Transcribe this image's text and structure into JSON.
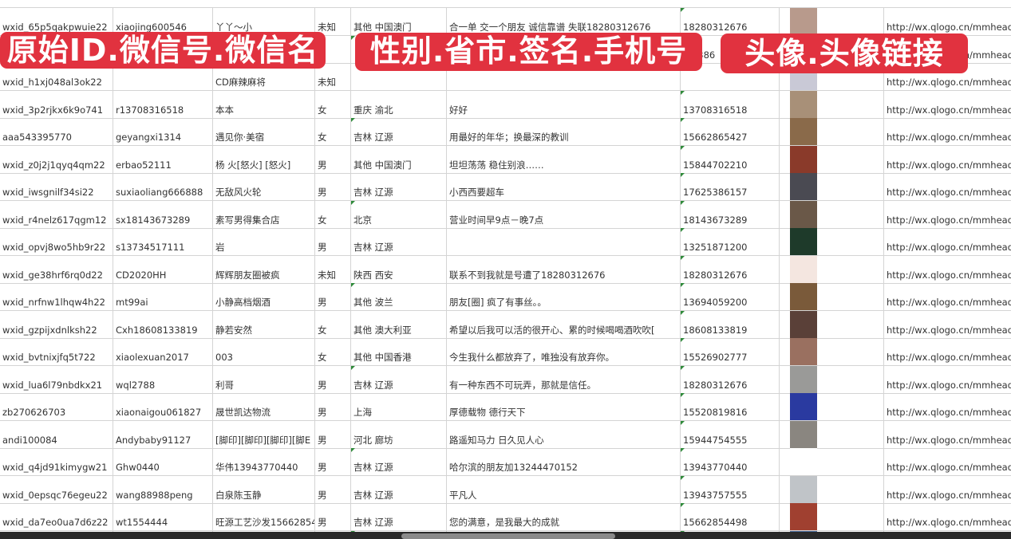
{
  "overlays": {
    "ids_label": "原始ID.微信号.微信名",
    "profile_label": "性别.省市.签名.手机号",
    "avatar_label": "头像.头像链接"
  },
  "colors": {
    "overlay": "#e1323f",
    "grid": "#d4d4d4",
    "cell_marker": "#2f8a3a"
  },
  "rows": [
    {
      "id": "wxid_65p5qakpwuie22",
      "wechat": "xiaojing600546",
      "name": "丫丫～小",
      "gender": "未知",
      "region": "其他 中国澳门",
      "signature": "合一单 交一个朋友 诚信靠谱 失联18280312676",
      "phone": "18280312676",
      "avatar_color": "#b89a8c",
      "url": "http://wx.qlogo.cn/mmhead"
    },
    {
      "id": "",
      "wechat": "",
      "name": "",
      "gender": "",
      "region": "",
      "signature": "",
      "phone": "...5386",
      "avatar_color": "#3c4f8a",
      "url": "http://wx.qlogo.cn/mmhead"
    },
    {
      "id": "wxid_h1xj048al3ok22",
      "wechat": "",
      "name": "CD麻辣麻将",
      "gender": "未知",
      "region": "",
      "signature": "",
      "phone": "",
      "avatar_color": "#c9c9d6",
      "url": "http://wx.qlogo.cn/mmhead"
    },
    {
      "id": "wxid_3p2rjkx6k9o741",
      "wechat": "r13708316518",
      "name": "本本",
      "gender": "女",
      "region": "重庆 渝北",
      "signature": "好好",
      "phone": "13708316518",
      "avatar_color": "#a89078",
      "url": "http://wx.qlogo.cn/mmhead"
    },
    {
      "id": "aaa543395770",
      "wechat": "geyangxi1314",
      "name": "遇见你·美宿",
      "gender": "女",
      "region": "吉林 辽源",
      "signature": "用最好的年华；换最深的教训",
      "phone": "15662865427",
      "avatar_color": "#8a6a4a",
      "url": "http://wx.qlogo.cn/mmhead"
    },
    {
      "id": "wxid_z0j2j1qyq4qm22",
      "wechat": "erbao52111",
      "name": "杨 火[怒火] [怒火]",
      "gender": "男",
      "region": "其他 中国澳门",
      "signature": "坦坦荡荡 稳住别浪……",
      "phone": "15844702210",
      "avatar_color": "#8a3a2a",
      "url": "http://wx.qlogo.cn/mmhead"
    },
    {
      "id": "wxid_iwsgnilf34si22",
      "wechat": "suxiaoliang666888",
      "name": "无敌风火轮",
      "gender": "男",
      "region": "吉林 辽源",
      "signature": "小西西要超车",
      "phone": "17625386157",
      "avatar_color": "#4a4a52",
      "url": "http://wx.qlogo.cn/mmhead"
    },
    {
      "id": "wxid_r4nelz617qgm12",
      "wechat": "sx18143673289",
      "name": "素写男得集合店",
      "gender": "女",
      "region": "北京",
      "signature": "营业时间早9点－晚7点",
      "phone": "18143673289",
      "avatar_color": "#6a5848",
      "url": "http://wx.qlogo.cn/mmhead"
    },
    {
      "id": "wxid_opvj8wo5hb9r22",
      "wechat": "s13734517111",
      "name": "岩",
      "gender": "男",
      "region": "吉林 辽源",
      "signature": "",
      "phone": "13251871200",
      "avatar_color": "#1e3a2a",
      "url": "http://wx.qlogo.cn/mmhead"
    },
    {
      "id": "wxid_ge38hrf6rq0d22",
      "wechat": "CD2020HH",
      "name": "辉辉朋友圈被疯",
      "gender": "未知",
      "region": "陕西 西安",
      "signature": "联系不到我就是号遭了18280312676",
      "phone": "18280312676",
      "avatar_color": "#f4e6e0",
      "url": "http://wx.qlogo.cn/mmhead"
    },
    {
      "id": "wxid_nrfnw1lhqw4h22",
      "wechat": "mt99ai",
      "name": "小静高档烟酒",
      "gender": "男",
      "region": "其他 波兰",
      "signature": "朋友[圈] 疯了有事丝。。",
      "phone": "13694059200",
      "avatar_color": "#7a5a3a",
      "url": "http://wx.qlogo.cn/mmhead"
    },
    {
      "id": "wxid_gzpijxdnlksh22",
      "wechat": "Cxh18608133819",
      "name": "静若安然",
      "gender": "女",
      "region": "其他 澳大利亚",
      "signature": "希望以后我可以活的很开心、累的时候喝喝酒吹吹[",
      "phone": "18608133819",
      "avatar_color": "#5a4038",
      "url": "http://wx.qlogo.cn/mmhead"
    },
    {
      "id": "wxid_bvtnixjfq5t722",
      "wechat": "xiaolexuan2017",
      "name": "003",
      "gender": "女",
      "region": "其他 中国香港",
      "signature": "今生我什么都放弃了，唯独没有放弃你。",
      "phone": "15526902777",
      "avatar_color": "#9a7060",
      "url": "http://wx.qlogo.cn/mmhead"
    },
    {
      "id": "wxid_lua6l79nbdkx21",
      "wechat": "wql2788",
      "name": "利哥",
      "gender": "男",
      "region": "吉林 辽源",
      "signature": "有一种东西不可玩弄，那就是信任。",
      "phone": "18280312676",
      "avatar_color": "#9a9a98",
      "url": "http://wx.qlogo.cn/mmhead"
    },
    {
      "id": "zb270626703",
      "wechat": "xiaonaigou061827",
      "name": "晟世凯达物流",
      "gender": "男",
      "region": "上海",
      "signature": "厚德载物 德行天下",
      "phone": "15520819816",
      "avatar_color": "#2a3aa0",
      "url": "http://wx.qlogo.cn/mmhead"
    },
    {
      "id": "andi100084",
      "wechat": "Andybaby91127",
      "name": "[脚印][脚印][脚印][脚E",
      "gender": "男",
      "region": "河北 廊坊",
      "signature": "路遥知马力 日久见人心",
      "phone": "15944754555",
      "avatar_color": "#8a8680",
      "url": "http://wx.qlogo.cn/mmhead"
    },
    {
      "id": "wxid_q4jd91kimygw21",
      "wechat": "Ghw0440",
      "name": "华伟13943770440",
      "gender": "男",
      "region": "吉林 辽源",
      "signature": "哈尔滨的朋友加13244470152",
      "phone": "13943770440",
      "avatar_color": "#ffffff",
      "url": "http://wx.qlogo.cn/mmhead"
    },
    {
      "id": "wxid_0epsqc76egeu22",
      "wechat": "wang88988peng",
      "name": "白泉陈玉静",
      "gender": "男",
      "region": "吉林 辽源",
      "signature": "平凡人",
      "phone": "13943757555",
      "avatar_color": "#c0c4c8",
      "url": "http://wx.qlogo.cn/mmhead"
    },
    {
      "id": "wxid_da7eo0ua7d6z22",
      "wechat": "wt1554444",
      "name": "旺源工艺沙发15662854",
      "gender": "男",
      "region": "吉林 辽源",
      "signature": "您的满意，是我最大的成就",
      "phone": "15662854498",
      "avatar_color": "#a04030",
      "url": "http://wx.qlogo.cn/mmhead"
    },
    {
      "id": "",
      "wechat": "",
      "name": "",
      "gender": "",
      "region": "",
      "signature": "",
      "phone": "",
      "avatar_color": "#4a6a9a",
      "url": ""
    }
  ]
}
